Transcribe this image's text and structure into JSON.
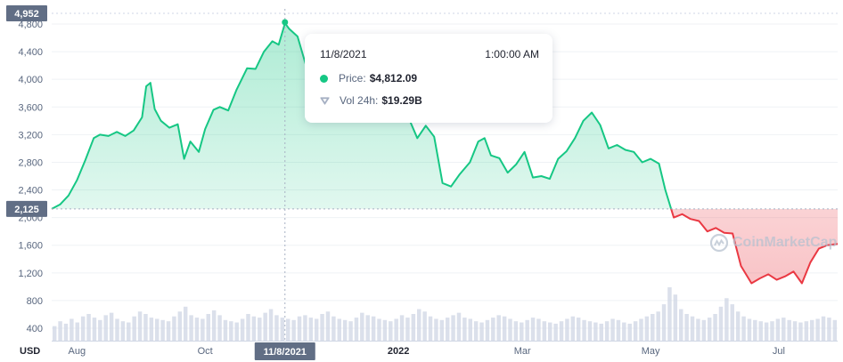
{
  "chart_data": {
    "type": "line",
    "currency_label": "USD",
    "y_ticks": [
      "400",
      "800",
      "1,200",
      "1,600",
      "2,000",
      "2,400",
      "2,800",
      "3,200",
      "3,600",
      "4,000",
      "4,400",
      "4,800"
    ],
    "y_tick_values": [
      400,
      800,
      1200,
      1600,
      2000,
      2400,
      2800,
      3200,
      3600,
      4000,
      4400,
      4800
    ],
    "x_ticks": [
      "Aug",
      "Oct",
      "2022",
      "Mar",
      "May",
      "Jul"
    ],
    "x_tick_dates": [
      "2021-08-01",
      "2021-10-01",
      "2022-01-01",
      "2022-03-01",
      "2022-05-01",
      "2022-07-01"
    ],
    "x_range": [
      "2021-07-20",
      "2022-07-29"
    ],
    "y_range_price": [
      1900,
      5080
    ],
    "high_badge": "4,952",
    "high_value": 4952,
    "ref_badge": "2,125",
    "ref_value": 2125,
    "hover_date_label": "11/8/2021",
    "hover_date": "2021-11-08",
    "up_color": "#16c784",
    "down_color": "#ea3943",
    "price": [
      [
        "2021-07-20",
        2125
      ],
      [
        "2021-07-24",
        2190
      ],
      [
        "2021-07-28",
        2320
      ],
      [
        "2021-08-01",
        2540
      ],
      [
        "2021-08-05",
        2830
      ],
      [
        "2021-08-09",
        3150
      ],
      [
        "2021-08-12",
        3200
      ],
      [
        "2021-08-16",
        3180
      ],
      [
        "2021-08-20",
        3240
      ],
      [
        "2021-08-24",
        3180
      ],
      [
        "2021-08-28",
        3260
      ],
      [
        "2021-09-01",
        3450
      ],
      [
        "2021-09-03",
        3900
      ],
      [
        "2021-09-05",
        3950
      ],
      [
        "2021-09-07",
        3570
      ],
      [
        "2021-09-10",
        3400
      ],
      [
        "2021-09-14",
        3300
      ],
      [
        "2021-09-18",
        3350
      ],
      [
        "2021-09-21",
        2850
      ],
      [
        "2021-09-24",
        3100
      ],
      [
        "2021-09-28",
        2950
      ],
      [
        "2021-10-01",
        3280
      ],
      [
        "2021-10-05",
        3560
      ],
      [
        "2021-10-08",
        3600
      ],
      [
        "2021-10-12",
        3550
      ],
      [
        "2021-10-16",
        3850
      ],
      [
        "2021-10-21",
        4160
      ],
      [
        "2021-10-25",
        4150
      ],
      [
        "2021-10-29",
        4400
      ],
      [
        "2021-11-02",
        4550
      ],
      [
        "2021-11-05",
        4500
      ],
      [
        "2021-11-08",
        4812
      ],
      [
        "2021-11-10",
        4730
      ],
      [
        "2021-11-14",
        4620
      ],
      [
        "2021-11-18",
        4200
      ],
      [
        "2021-11-22",
        4300
      ],
      [
        "2021-11-26",
        4050
      ],
      [
        "2021-12-01",
        4580
      ],
      [
        "2021-12-04",
        4100
      ],
      [
        "2021-12-08",
        4350
      ],
      [
        "2021-12-13",
        3780
      ],
      [
        "2021-12-18",
        3950
      ],
      [
        "2021-12-23",
        4100
      ],
      [
        "2021-12-28",
        3800
      ],
      [
        "2022-01-01",
        3750
      ],
      [
        "2022-01-05",
        3500
      ],
      [
        "2022-01-10",
        3150
      ],
      [
        "2022-01-14",
        3330
      ],
      [
        "2022-01-18",
        3170
      ],
      [
        "2022-01-22",
        2500
      ],
      [
        "2022-01-26",
        2450
      ],
      [
        "2022-01-30",
        2620
      ],
      [
        "2022-02-04",
        2800
      ],
      [
        "2022-02-08",
        3100
      ],
      [
        "2022-02-11",
        3150
      ],
      [
        "2022-02-14",
        2900
      ],
      [
        "2022-02-18",
        2860
      ],
      [
        "2022-02-22",
        2650
      ],
      [
        "2022-02-26",
        2770
      ],
      [
        "2022-03-02",
        2950
      ],
      [
        "2022-03-06",
        2580
      ],
      [
        "2022-03-10",
        2600
      ],
      [
        "2022-03-14",
        2560
      ],
      [
        "2022-03-18",
        2850
      ],
      [
        "2022-03-22",
        2960
      ],
      [
        "2022-03-26",
        3150
      ],
      [
        "2022-03-30",
        3400
      ],
      [
        "2022-04-03",
        3520
      ],
      [
        "2022-04-07",
        3340
      ],
      [
        "2022-04-11",
        3000
      ],
      [
        "2022-04-15",
        3050
      ],
      [
        "2022-04-19",
        2980
      ],
      [
        "2022-04-23",
        2950
      ],
      [
        "2022-04-27",
        2800
      ],
      [
        "2022-05-01",
        2850
      ],
      [
        "2022-05-05",
        2780
      ],
      [
        "2022-05-08",
        2400
      ],
      [
        "2022-05-12",
        2000
      ],
      [
        "2022-05-16",
        2050
      ],
      [
        "2022-05-20",
        1980
      ],
      [
        "2022-05-24",
        1950
      ],
      [
        "2022-05-28",
        1800
      ],
      [
        "2022-06-01",
        1850
      ],
      [
        "2022-06-05",
        1780
      ],
      [
        "2022-06-09",
        1770
      ],
      [
        "2022-06-13",
        1300
      ],
      [
        "2022-06-18",
        1050
      ],
      [
        "2022-06-22",
        1120
      ],
      [
        "2022-06-26",
        1180
      ],
      [
        "2022-06-30",
        1100
      ],
      [
        "2022-07-04",
        1150
      ],
      [
        "2022-07-08",
        1220
      ],
      [
        "2022-07-12",
        1050
      ],
      [
        "2022-07-16",
        1350
      ],
      [
        "2022-07-20",
        1550
      ],
      [
        "2022-07-24",
        1600
      ],
      [
        "2022-07-29",
        1620
      ]
    ],
    "volume_billions": [
      12,
      16,
      14,
      18,
      15,
      20,
      22,
      19,
      17,
      21,
      23,
      18,
      16,
      15,
      20,
      24,
      22,
      19,
      18,
      17,
      16,
      20,
      24,
      28,
      21,
      19,
      18,
      22,
      25,
      21,
      17,
      16,
      15,
      18,
      22,
      20,
      19,
      23,
      26,
      21,
      19,
      18,
      17,
      20,
      21,
      19,
      18,
      22,
      24,
      20,
      18,
      17,
      16,
      19,
      23,
      21,
      20,
      18,
      17,
      16,
      18,
      21,
      19,
      22,
      26,
      24,
      20,
      18,
      17,
      19,
      21,
      23,
      19,
      18,
      16,
      15,
      17,
      19,
      21,
      20,
      18,
      16,
      15,
      17,
      19,
      18,
      16,
      15,
      14,
      16,
      18,
      20,
      19,
      17,
      16,
      15,
      14,
      16,
      18,
      17,
      15,
      14,
      16,
      18,
      20,
      22,
      24,
      30,
      44,
      38,
      26,
      22,
      20,
      18,
      17,
      19,
      22,
      28,
      35,
      30,
      24,
      20,
      18,
      17,
      16,
      15,
      16,
      18,
      19,
      17,
      16,
      15,
      16,
      17,
      18,
      20,
      19,
      17
    ],
    "tooltip": {
      "date": "11/8/2021",
      "time": "1:00:00 AM",
      "price_label": "Price:",
      "price_value": "$4,812.09",
      "vol_label": "Vol 24h:",
      "vol_value": "$19.29B"
    },
    "watermark": "CoinMarketCap"
  }
}
